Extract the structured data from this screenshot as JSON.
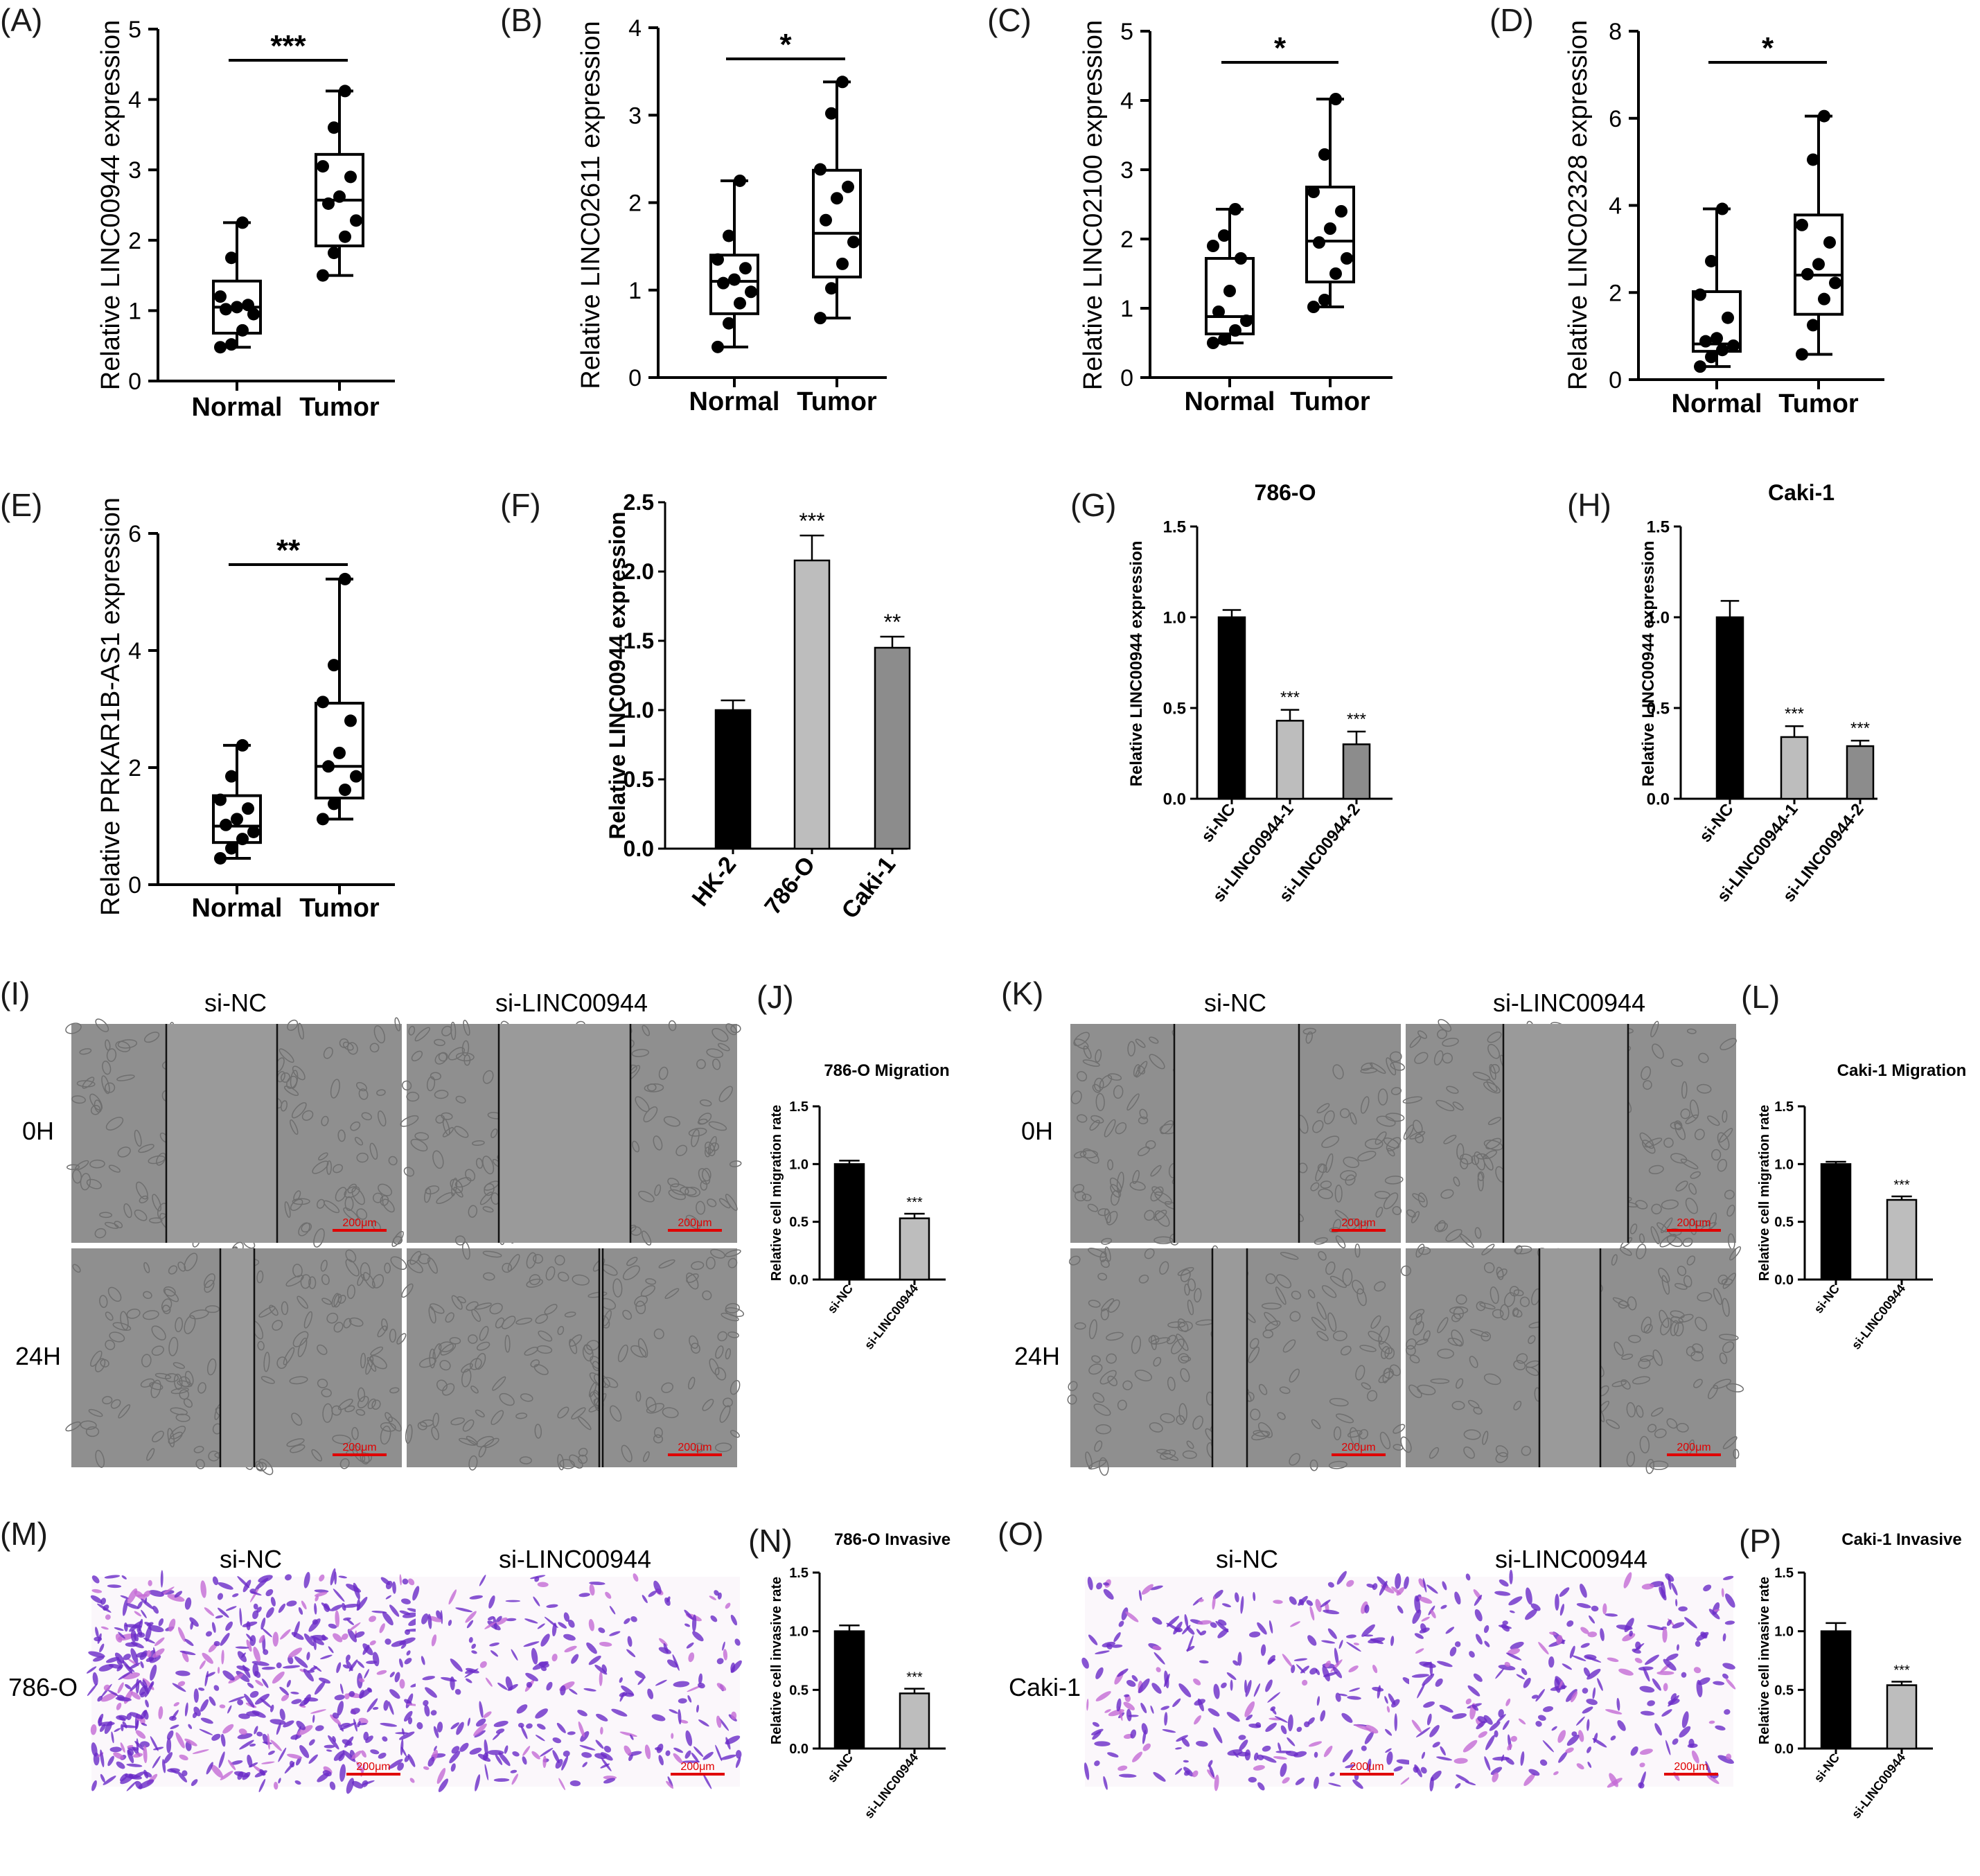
{
  "colors": {
    "axis": "#000000",
    "black_bar": "#000000",
    "light_bar": "#bdbdbd",
    "mid_bar": "#8c8c8c",
    "scale_bar": "#e00000",
    "stain": "#6a2ac8",
    "micro_bg": "#8f8f8f"
  },
  "chart_data": [
    {
      "id": "A",
      "panel_label": "(A)",
      "type": "box",
      "ylabel": "Relative LINC00944 expression",
      "ylim": [
        0,
        5
      ],
      "ticks": [
        "0",
        "1",
        "2",
        "3",
        "4",
        "5"
      ],
      "categories": [
        "Normal",
        "Tumor"
      ],
      "significance": "***",
      "boxes": [
        {
          "min": 0.48,
          "q1": 0.68,
          "median": 1.05,
          "q3": 1.42,
          "max": 2.25,
          "points": [
            0.48,
            0.52,
            0.72,
            0.95,
            1.02,
            1.05,
            1.08,
            1.2,
            1.75,
            2.25
          ]
        },
        {
          "min": 1.5,
          "q1": 1.92,
          "median": 2.57,
          "q3": 3.22,
          "max": 4.12,
          "points": [
            1.5,
            1.82,
            2.05,
            2.28,
            2.52,
            2.62,
            2.9,
            3.05,
            3.6,
            4.12
          ]
        }
      ]
    },
    {
      "id": "B",
      "panel_label": "(B)",
      "type": "box",
      "ylabel": "Relative LINC02611 expression",
      "ylim": [
        0,
        4
      ],
      "ticks": [
        "0",
        "1",
        "2",
        "3",
        "4"
      ],
      "categories": [
        "Normal",
        "Tumor"
      ],
      "significance": "*",
      "boxes": [
        {
          "min": 0.35,
          "q1": 0.73,
          "median": 1.1,
          "q3": 1.4,
          "max": 2.25,
          "points": [
            0.35,
            0.62,
            0.85,
            0.98,
            1.08,
            1.12,
            1.25,
            1.35,
            1.62,
            2.25
          ]
        },
        {
          "min": 0.68,
          "q1": 1.15,
          "median": 1.65,
          "q3": 2.37,
          "max": 3.38,
          "points": [
            0.68,
            1.02,
            1.3,
            1.55,
            1.8,
            2.05,
            2.18,
            2.38,
            3.02,
            3.38
          ]
        }
      ]
    },
    {
      "id": "C",
      "panel_label": "(C)",
      "type": "box",
      "ylabel": "Relative LINC02100 expression",
      "ylim": [
        0,
        5
      ],
      "ticks": [
        "0",
        "1",
        "2",
        "3",
        "4",
        "5"
      ],
      "categories": [
        "Normal",
        "Tumor"
      ],
      "significance": "*",
      "boxes": [
        {
          "min": 0.5,
          "q1": 0.63,
          "median": 0.88,
          "q3": 1.72,
          "max": 2.43,
          "points": [
            0.5,
            0.55,
            0.68,
            0.82,
            0.95,
            1.25,
            1.72,
            1.9,
            2.05,
            2.43
          ]
        },
        {
          "min": 1.02,
          "q1": 1.38,
          "median": 1.97,
          "q3": 2.75,
          "max": 4.02,
          "points": [
            1.02,
            1.12,
            1.5,
            1.72,
            1.95,
            2.15,
            2.4,
            2.68,
            3.22,
            4.02
          ]
        }
      ]
    },
    {
      "id": "D",
      "panel_label": "(D)",
      "type": "box",
      "ylabel": "Relative LINC02328 expression",
      "ylim": [
        0,
        8
      ],
      "ticks": [
        "0",
        "2",
        "4",
        "6",
        "8"
      ],
      "categories": [
        "Normal",
        "Tumor"
      ],
      "significance": "*",
      "boxes": [
        {
          "min": 0.3,
          "q1": 0.65,
          "median": 0.82,
          "q3": 2.02,
          "max": 3.92,
          "points": [
            0.3,
            0.52,
            0.68,
            0.78,
            0.88,
            0.95,
            1.42,
            1.95,
            2.72,
            3.92
          ]
        },
        {
          "min": 0.58,
          "q1": 1.5,
          "median": 2.4,
          "q3": 3.78,
          "max": 6.05,
          "points": [
            0.58,
            1.25,
            1.85,
            2.22,
            2.42,
            2.65,
            3.15,
            3.55,
            5.05,
            6.05
          ]
        }
      ]
    },
    {
      "id": "E",
      "panel_label": "(E)",
      "type": "box",
      "ylabel": "Relative PRKAR1B-AS1 expression",
      "ylim": [
        0,
        6
      ],
      "ticks": [
        "0",
        "2",
        "4",
        "6"
      ],
      "categories": [
        "Normal",
        "Tumor"
      ],
      "significance": "**",
      "boxes": [
        {
          "min": 0.45,
          "q1": 0.72,
          "median": 1.0,
          "q3": 1.52,
          "max": 2.38,
          "points": [
            0.45,
            0.62,
            0.78,
            0.9,
            1.02,
            1.12,
            1.3,
            1.45,
            1.85,
            2.38
          ]
        },
        {
          "min": 1.12,
          "q1": 1.48,
          "median": 2.02,
          "q3": 3.1,
          "max": 5.22,
          "points": [
            1.12,
            1.38,
            1.62,
            1.85,
            2.02,
            2.25,
            2.8,
            3.12,
            3.75,
            5.22
          ]
        }
      ]
    },
    {
      "id": "F",
      "panel_label": "(F)",
      "type": "bar",
      "ylabel": "Relative LINC00944 expression",
      "ylim": [
        0,
        2.5
      ],
      "ticks": [
        "0.0",
        "0.5",
        "1.0",
        "1.5",
        "2.0",
        "2.5"
      ],
      "categories": [
        "HK-2",
        "786-O",
        "Caki-1"
      ],
      "values": [
        1.0,
        2.08,
        1.45
      ],
      "errors": [
        0.07,
        0.18,
        0.08
      ],
      "fills": [
        "black_bar",
        "light_bar",
        "mid_bar"
      ],
      "stars": [
        "",
        "***",
        "**"
      ]
    },
    {
      "id": "G",
      "panel_label": "(G)",
      "type": "bar",
      "title": "786-O",
      "ylabel": "Relative LINC00944 expression",
      "ylim": [
        0,
        1.5
      ],
      "ticks": [
        "0.0",
        "0.5",
        "1.0",
        "1.5"
      ],
      "categories": [
        "si-NC",
        "si-LINC00944-1",
        "si-LINC00944-2"
      ],
      "values": [
        1.0,
        0.43,
        0.3
      ],
      "errors": [
        0.04,
        0.06,
        0.07
      ],
      "fills": [
        "black_bar",
        "light_bar",
        "mid_bar"
      ],
      "stars": [
        "",
        "***",
        "***"
      ]
    },
    {
      "id": "H",
      "panel_label": "(H)",
      "type": "bar",
      "title": "Caki-1",
      "ylabel": "Relative LINC00944 expression",
      "ylim": [
        0,
        1.5
      ],
      "ticks": [
        "0.0",
        "0.5",
        "1.0",
        "1.5"
      ],
      "categories": [
        "si-NC",
        "si-LINC00944-1",
        "si-LINC00944-2"
      ],
      "values": [
        1.0,
        0.34,
        0.29
      ],
      "errors": [
        0.09,
        0.06,
        0.03
      ],
      "fills": [
        "black_bar",
        "light_bar",
        "mid_bar"
      ],
      "stars": [
        "",
        "***",
        "***"
      ]
    },
    {
      "id": "J",
      "panel_label": "(J)",
      "type": "bar",
      "title": "786-O Migration",
      "ylabel": "Relative cell migration rate",
      "ylim": [
        0,
        1.5
      ],
      "ticks": [
        "0.0",
        "0.5",
        "1.0",
        "1.5"
      ],
      "categories": [
        "si-NC",
        "si-LINC00944"
      ],
      "values": [
        1.0,
        0.53
      ],
      "errors": [
        0.03,
        0.04
      ],
      "fills": [
        "black_bar",
        "light_bar"
      ],
      "stars": [
        "",
        "***"
      ]
    },
    {
      "id": "L",
      "panel_label": "(L)",
      "type": "bar",
      "title": "Caki-1 Migration",
      "ylabel": "Relative cell migration rate",
      "ylim": [
        0,
        1.5
      ],
      "ticks": [
        "0.0",
        "0.5",
        "1.0",
        "1.5"
      ],
      "categories": [
        "si-NC",
        "si-LINC00944"
      ],
      "values": [
        1.0,
        0.69
      ],
      "errors": [
        0.02,
        0.03
      ],
      "fills": [
        "black_bar",
        "light_bar"
      ],
      "stars": [
        "",
        "***"
      ]
    },
    {
      "id": "N",
      "panel_label": "(N)",
      "type": "bar",
      "title": "786-O Invasive",
      "ylabel": "Relative cell invasive rate",
      "ylim": [
        0,
        1.5
      ],
      "ticks": [
        "0.0",
        "0.5",
        "1.0",
        "1.5"
      ],
      "categories": [
        "si-NC",
        "si-LINC00944"
      ],
      "values": [
        1.0,
        0.47
      ],
      "errors": [
        0.05,
        0.04
      ],
      "fills": [
        "black_bar",
        "light_bar"
      ],
      "stars": [
        "",
        "***"
      ]
    },
    {
      "id": "P",
      "panel_label": "(P)",
      "type": "bar",
      "title": "Caki-1 Invasive",
      "ylabel": "Relative cell invasive rate",
      "ylim": [
        0,
        1.5
      ],
      "ticks": [
        "0.0",
        "0.5",
        "1.0",
        "1.5"
      ],
      "categories": [
        "si-NC",
        "si-LINC00944"
      ],
      "values": [
        1.0,
        0.54
      ],
      "errors": [
        0.07,
        0.03
      ],
      "fills": [
        "black_bar",
        "light_bar"
      ],
      "stars": [
        "",
        "***"
      ]
    }
  ],
  "micro_panels": [
    {
      "id": "I",
      "panel_label": "(I)",
      "col_labels": [
        "si-NC",
        "si-LINC00944"
      ],
      "row_labels": [
        "0H",
        "24H"
      ],
      "scale_label": "200μm",
      "kind": "scratch"
    },
    {
      "id": "K",
      "panel_label": "(K)",
      "col_labels": [
        "si-NC",
        "si-LINC00944"
      ],
      "row_labels": [
        "0H",
        "24H"
      ],
      "scale_label": "200μm",
      "kind": "scratch"
    },
    {
      "id": "M",
      "panel_label": "(M)",
      "col_labels": [
        "si-NC",
        "si-LINC00944"
      ],
      "row_labels": [
        "786-O"
      ],
      "scale_label": "200μm",
      "kind": "invasion"
    },
    {
      "id": "O",
      "panel_label": "(O)",
      "col_labels": [
        "si-NC",
        "si-LINC00944"
      ],
      "row_labels": [
        "Caki-1"
      ],
      "scale_label": "200μm",
      "kind": "invasion"
    }
  ]
}
